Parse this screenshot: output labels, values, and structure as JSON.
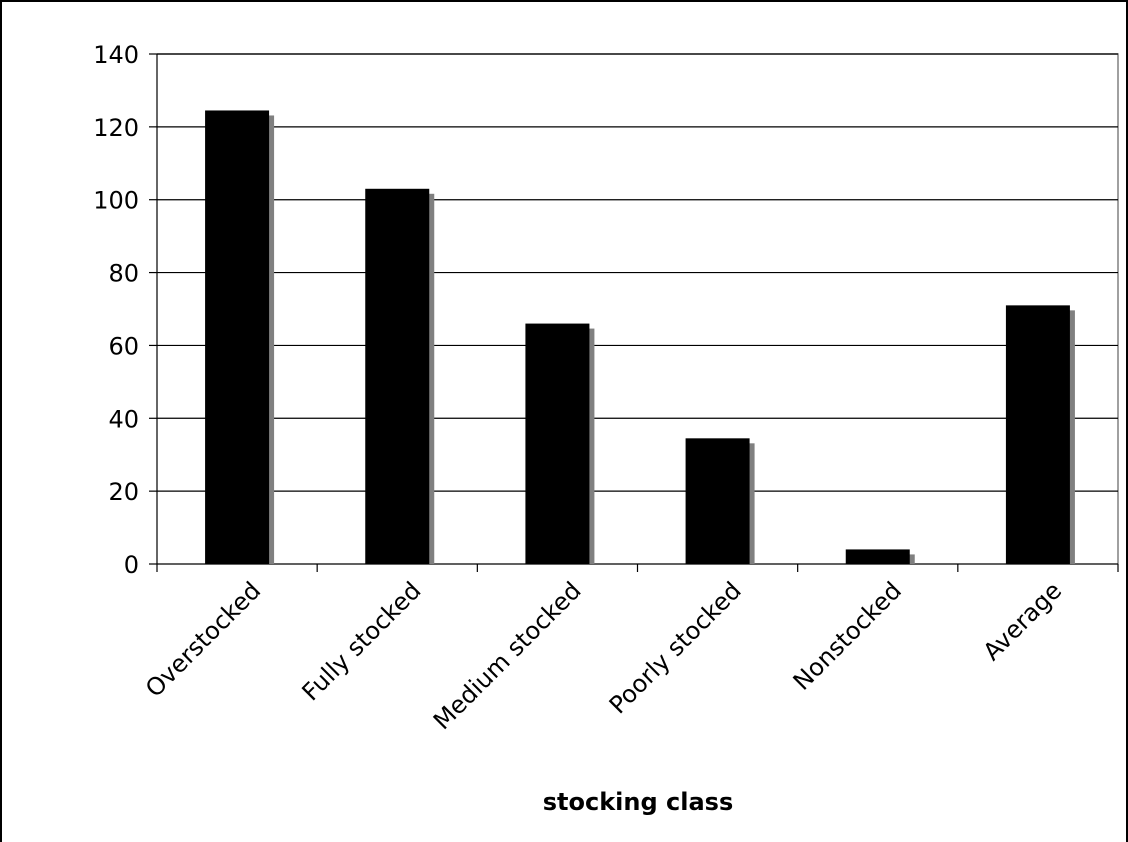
{
  "chart_data": {
    "type": "bar",
    "categories": [
      "Overstocked",
      "Fully stocked",
      "Medium stocked",
      "Poorly stocked",
      "Nonstocked",
      "Average"
    ],
    "series": [
      {
        "values": [
          124.5,
          103,
          66,
          34.5,
          4,
          71
        ]
      }
    ],
    "title": "",
    "xlabel": "stocking class",
    "ylabel": "",
    "ylim": [
      0,
      140
    ],
    "yticks": [
      0,
      20,
      40,
      60,
      80,
      100,
      120,
      140
    ],
    "grid": true,
    "legend": "none",
    "bar_color": "#000000",
    "shadow_color": "#808080",
    "grid_color": "#000000",
    "background": "#ffffff"
  }
}
